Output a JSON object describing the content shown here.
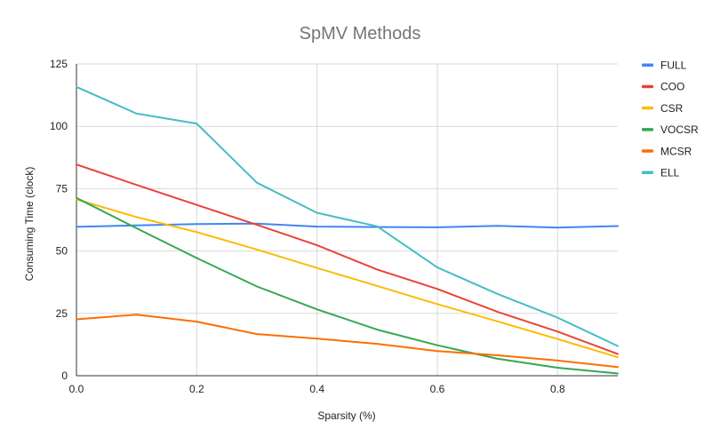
{
  "chart_data": {
    "type": "line",
    "title": "SpMV Methods",
    "xlabel": "Sparsity (%)",
    "ylabel": "Consuming Time (clock)",
    "x": [
      0,
      0.1,
      0.2,
      0.3,
      0.4,
      0.5,
      0.6,
      0.7,
      0.8,
      0.9
    ],
    "xlim": [
      0,
      0.9
    ],
    "ylim": [
      0,
      125
    ],
    "xticks": [
      0,
      0.2,
      0.4,
      0.6,
      0.8
    ],
    "xtick_labels": [
      "0.0",
      "0.2",
      "0.4",
      "0.6",
      "0.8"
    ],
    "yticks": [
      0,
      25,
      50,
      75,
      100,
      125
    ],
    "ytick_labels": [
      "0",
      "25",
      "50",
      "75",
      "100",
      "125"
    ],
    "grid": true,
    "legend_position": "right",
    "series": [
      {
        "name": "FULL",
        "color": "#4285F4",
        "values": [
          59.7,
          60.3,
          60.8,
          61.0,
          59.8,
          59.6,
          59.5,
          60.1,
          59.4,
          60.0
        ]
      },
      {
        "name": "COO",
        "color": "#EA4335",
        "values": [
          84.7,
          76.5,
          68.5,
          60.5,
          52.3,
          42.6,
          34.8,
          25.6,
          17.7,
          8.7
        ]
      },
      {
        "name": "CSR",
        "color": "#FBBC04",
        "values": [
          70.7,
          63.6,
          57.6,
          50.6,
          43.2,
          36.0,
          28.7,
          21.8,
          14.7,
          7.4
        ]
      },
      {
        "name": "VOCSR",
        "color": "#34A853",
        "values": [
          71.3,
          59.1,
          47.2,
          35.8,
          26.6,
          18.5,
          12.2,
          6.8,
          3.2,
          0.9
        ]
      },
      {
        "name": "MCSR",
        "color": "#FF6D01",
        "values": [
          22.6,
          24.5,
          21.7,
          16.7,
          14.9,
          12.8,
          9.9,
          8.2,
          6.1,
          3.5
        ]
      },
      {
        "name": "ELL",
        "color": "#46BDC6",
        "values": [
          115.8,
          105.1,
          101.1,
          77.4,
          65.3,
          59.9,
          43.4,
          32.8,
          23.3,
          11.9
        ]
      }
    ]
  }
}
